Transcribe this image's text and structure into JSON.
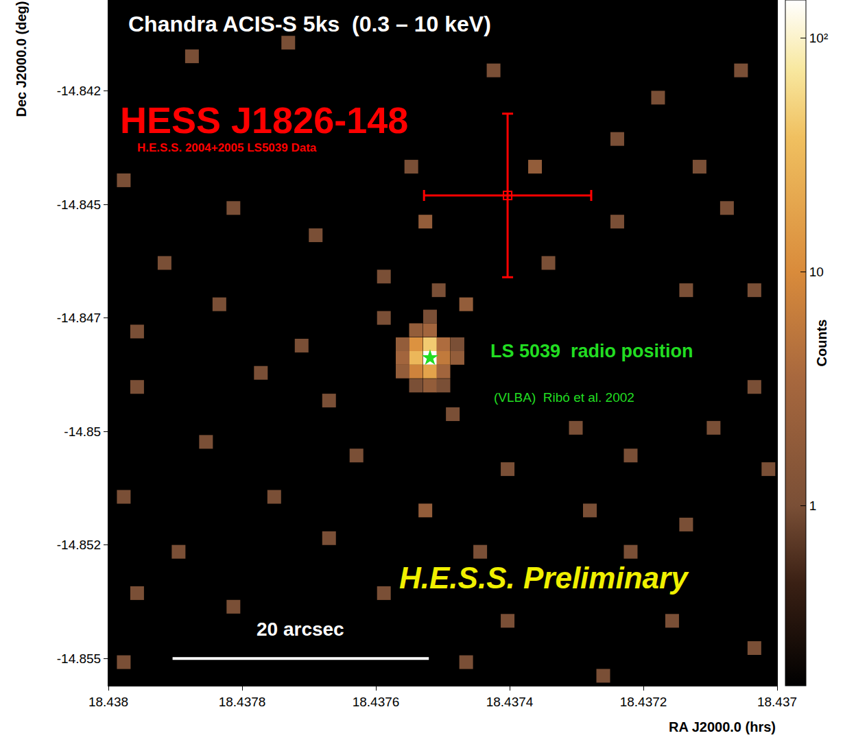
{
  "chart_data": {
    "type": "heatmap",
    "title": "Chandra ACIS-S 5ks  (0.3 – 10 keV)",
    "x_label": "RA J2000.0 (hrs)",
    "y_label": "Dec J2000.0 (deg)",
    "xlim": [
      18.438,
      18.437
    ],
    "xticks": [
      18.438,
      18.4378,
      18.4376,
      18.4374,
      18.4372,
      18.437
    ],
    "ylim": [
      -14.8556,
      -14.8405
    ],
    "yticks": [
      -14.855,
      {
        "value": -14.8525,
        "label": "-14.852"
      },
      -14.85,
      {
        "value": -14.8475,
        "label": "-14.847"
      },
      -14.845,
      {
        "value": -14.8425,
        "label": "-14.842"
      }
    ],
    "grid": false,
    "pixels": {
      "ra": [
        18.437519,
        18.437519,
        18.43754,
        18.43754,
        18.437519,
        18.43754,
        18.437499,
        18.437499,
        18.437499,
        18.437519,
        18.43756,
        18.437478,
        18.43754,
        18.43756,
        18.437519,
        18.43756,
        18.437499,
        18.437519,
        18.43754,
        18.437478,
        18.437875,
        18.437731,
        18.437424,
        18.437054,
        18.437178,
        18.437239,
        18.437116,
        18.437977,
        18.437813,
        18.437526,
        18.437239,
        18.437075,
        18.43769,
        18.437916,
        18.437588,
        18.437342,
        18.437136,
        18.437834,
        18.437465,
        18.437957,
        18.437711,
        18.437588,
        18.437957,
        18.437772,
        18.43767,
        18.437485,
        18.437301,
        18.437034,
        18.437095,
        18.437854,
        18.437629,
        18.437403,
        18.437219,
        18.437013,
        18.437977,
        18.437752,
        18.437526,
        18.43728,
        18.437136,
        18.437895,
        18.43767,
        18.437444,
        18.437219,
        18.437957,
        18.437813,
        18.437588,
        18.437403,
        18.437157,
        18.437977,
        18.437465,
        18.43726,
        18.437034,
        18.437547,
        18.437362,
        18.437034,
        18.437506
      ],
      "dec": [
        -14.84838,
        -14.84808,
        -14.84838,
        -14.84808,
        -14.84868,
        -14.84868,
        -14.84838,
        -14.84808,
        -14.84868,
        -14.84777,
        -14.84838,
        -14.84838,
        -14.84777,
        -14.84808,
        -14.84899,
        -14.84868,
        -14.84899,
        -14.84747,
        -14.84899,
        -14.84808,
        -14.84174,
        -14.84144,
        -14.84205,
        -14.84205,
        -14.84265,
        -14.84356,
        -14.84417,
        -14.84447,
        -14.84508,
        -14.84538,
        -14.84538,
        -14.84508,
        -14.84568,
        -14.84629,
        -14.84659,
        -14.84629,
        -14.84689,
        -14.8472,
        -14.8472,
        -14.8478,
        -14.84811,
        -14.8475,
        -14.84902,
        -14.84871,
        -14.84932,
        -14.84962,
        -14.84992,
        -14.84902,
        -14.84992,
        -14.85023,
        -14.85053,
        -14.85083,
        -14.85053,
        -14.85083,
        -14.85144,
        -14.85144,
        -14.85174,
        -14.85174,
        -14.85205,
        -14.85265,
        -14.85235,
        -14.85265,
        -14.85265,
        -14.85356,
        -14.85386,
        -14.85356,
        -14.85417,
        -14.85417,
        -14.85508,
        -14.85508,
        -14.85538,
        -14.85477,
        -14.84417,
        -14.84417,
        -14.84689,
        -14.84689
      ],
      "counts": [
        150,
        45,
        30,
        12,
        18,
        8,
        6,
        4,
        3,
        3,
        3,
        2,
        2,
        2,
        2,
        2,
        1,
        1,
        1,
        1,
        1,
        1,
        1,
        1,
        1,
        1,
        1,
        1,
        1,
        2,
        1,
        1,
        1,
        1,
        1,
        1,
        1,
        1,
        2,
        1,
        1,
        1,
        1,
        1,
        1,
        1,
        1,
        1,
        1,
        1,
        1,
        1,
        1,
        1,
        1,
        1,
        2,
        1,
        1,
        1,
        1,
        1,
        1,
        1,
        1,
        1,
        1,
        1,
        1,
        1,
        1,
        1,
        1,
        2,
        1,
        1
      ]
    },
    "colorbar": {
      "title": "Counts",
      "range": [
        0.17,
        145
      ],
      "ticks": [
        1,
        10,
        {
          "value": 100,
          "label": "10²"
        }
      ],
      "log": true
    },
    "hess_source": {
      "label": "HESS J1826-148",
      "note": "H.E.S.S. 2004+2005 LS5039 Data",
      "ra": 18.437403,
      "dec": -14.844803,
      "ra_error": 0.000125,
      "dec_error": 0.0018,
      "color": "red",
      "marker": "square-open"
    },
    "radio_source": {
      "label": "LS 5039  radio position",
      "note": "(VLBA)  Ribó et al. 2002",
      "ra": 18.437519,
      "dec": -14.84838,
      "color": "#22dd22",
      "marker": "star"
    },
    "scale_bar": {
      "label": "20 arcsec",
      "arcsec": 20,
      "ra_start": 18.437904,
      "dec": -14.855,
      "color": "white"
    },
    "watermark": "H.E.S.S. Preliminary"
  }
}
